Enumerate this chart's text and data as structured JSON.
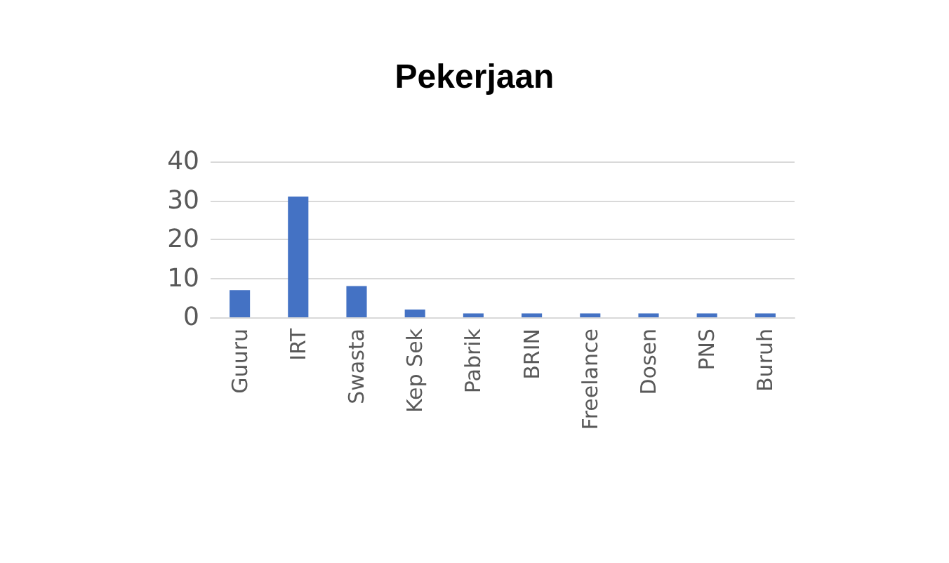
{
  "chart_data": {
    "type": "bar",
    "title": "Pekerjaan",
    "categories": [
      "Guuru",
      "IRT",
      "Swasta",
      "Kep Sek",
      "Pabrik",
      "BRIN",
      "Freelance",
      "Dosen",
      "PNS",
      "Buruh"
    ],
    "values": [
      7,
      31,
      8,
      2,
      1,
      1,
      1,
      1,
      1,
      1
    ],
    "color": "#4472c4",
    "ylim": [
      0,
      40
    ],
    "yticks": [
      0,
      10,
      20,
      30,
      40
    ],
    "grid": "y"
  }
}
